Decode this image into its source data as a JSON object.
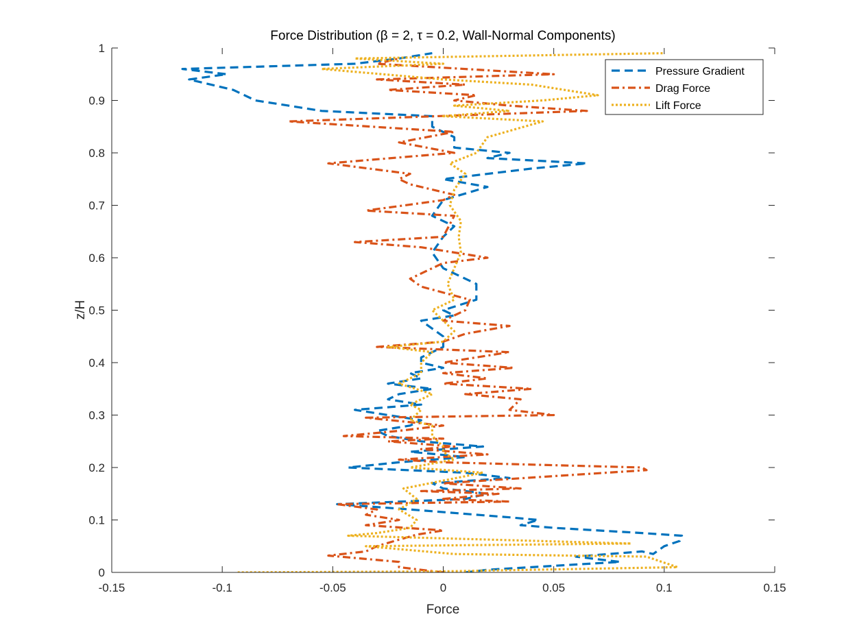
{
  "chart_data": {
    "type": "line",
    "title": "Force Distribution (β = 2, τ = 0.2, Wall-Normal Components)",
    "xlabel": "Force",
    "ylabel": "z/H",
    "xlim": [
      -0.15,
      0.15
    ],
    "ylim": [
      0,
      1
    ],
    "xticks": [
      -0.15,
      -0.1,
      -0.05,
      0,
      0.05,
      0.1,
      0.15
    ],
    "xtick_labels": [
      "-0.15",
      "-0.1",
      "-0.05",
      "0",
      "0.05",
      "0.1",
      "0.15"
    ],
    "yticks": [
      0,
      0.1,
      0.2,
      0.3,
      0.4,
      0.5,
      0.6,
      0.7,
      0.8,
      0.9,
      1
    ],
    "ytick_labels": [
      "0",
      "0.1",
      "0.2",
      "0.3",
      "0.4",
      "0.5",
      "0.6",
      "0.7",
      "0.8",
      "0.9",
      "1"
    ],
    "grid": false,
    "legend_position": "top-right",
    "series": [
      {
        "name": "Pressure Gradient",
        "color": "#0072BD",
        "style": "dashed",
        "points": [
          [
            0.01,
            0
          ],
          [
            0.02,
            0.005
          ],
          [
            0.06,
            0.015
          ],
          [
            0.08,
            0.02
          ],
          [
            0.06,
            0.03
          ],
          [
            0.09,
            0.04
          ],
          [
            0.095,
            0.035
          ],
          [
            0.1,
            0.05
          ],
          [
            0.107,
            0.06
          ],
          [
            0.108,
            0.07
          ],
          [
            0.09,
            0.075
          ],
          [
            0.05,
            0.085
          ],
          [
            0.035,
            0.09
          ],
          [
            0.043,
            0.1
          ],
          [
            0.03,
            0.105
          ],
          [
            -0.015,
            0.12
          ],
          [
            -0.048,
            0.13
          ],
          [
            0.01,
            0.14
          ],
          [
            0.02,
            0.15
          ],
          [
            0.0,
            0.16
          ],
          [
            -0.005,
            0.17
          ],
          [
            0.03,
            0.18
          ],
          [
            0.01,
            0.19
          ],
          [
            -0.043,
            0.2
          ],
          [
            -0.02,
            0.21
          ],
          [
            0.01,
            0.22
          ],
          [
            -0.015,
            0.23
          ],
          [
            0.018,
            0.24
          ],
          [
            -0.01,
            0.25
          ],
          [
            -0.025,
            0.26
          ],
          [
            -0.03,
            0.27
          ],
          [
            -0.015,
            0.28
          ],
          [
            -0.01,
            0.29
          ],
          [
            -0.04,
            0.31
          ],
          [
            -0.01,
            0.32
          ],
          [
            -0.025,
            0.33
          ],
          [
            -0.02,
            0.34
          ],
          [
            -0.005,
            0.35
          ],
          [
            -0.025,
            0.36
          ],
          [
            -0.01,
            0.37
          ],
          [
            -0.015,
            0.38
          ],
          [
            0.0,
            0.39
          ],
          [
            -0.01,
            0.4
          ],
          [
            -0.01,
            0.41
          ],
          [
            0.0,
            0.43
          ],
          [
            0.0,
            0.45
          ],
          [
            -0.01,
            0.48
          ],
          [
            0.005,
            0.49
          ],
          [
            0.0,
            0.5
          ],
          [
            0.015,
            0.52
          ],
          [
            0.015,
            0.55
          ],
          [
            0.0,
            0.58
          ],
          [
            -0.005,
            0.61
          ],
          [
            0.0,
            0.64
          ],
          [
            0.005,
            0.66
          ],
          [
            -0.005,
            0.68
          ],
          [
            0.0,
            0.71
          ],
          [
            0.02,
            0.735
          ],
          [
            0.0,
            0.75
          ],
          [
            0.04,
            0.77
          ],
          [
            0.065,
            0.78
          ],
          [
            0.02,
            0.79
          ],
          [
            0.03,
            0.8
          ],
          [
            0.005,
            0.81
          ],
          [
            0.005,
            0.83
          ],
          [
            -0.005,
            0.85
          ],
          [
            -0.005,
            0.87
          ],
          [
            -0.055,
            0.88
          ],
          [
            -0.07,
            0.89
          ],
          [
            -0.085,
            0.9
          ],
          [
            -0.095,
            0.92
          ],
          [
            -0.115,
            0.94
          ],
          [
            -0.098,
            0.95
          ],
          [
            -0.118,
            0.96
          ],
          [
            -0.04,
            0.97
          ],
          [
            -0.02,
            0.98
          ],
          [
            -0.005,
            0.99
          ]
        ]
      },
      {
        "name": "Drag Force",
        "color": "#D95319",
        "style": "dashdot",
        "points": [
          [
            0.0,
            0
          ],
          [
            -0.02,
            0.01
          ],
          [
            -0.02,
            0.02
          ],
          [
            -0.052,
            0.032
          ],
          [
            -0.035,
            0.04
          ],
          [
            -0.03,
            0.05
          ],
          [
            -0.022,
            0.06
          ],
          [
            -0.012,
            0.072
          ],
          [
            0.0,
            0.08
          ],
          [
            -0.035,
            0.09
          ],
          [
            -0.02,
            0.1
          ],
          [
            -0.035,
            0.11
          ],
          [
            -0.03,
            0.12
          ],
          [
            -0.048,
            0.13
          ],
          [
            0.03,
            0.135
          ],
          [
            0.0,
            0.14
          ],
          [
            0.025,
            0.15
          ],
          [
            -0.01,
            0.155
          ],
          [
            0.035,
            0.16
          ],
          [
            0.0,
            0.17
          ],
          [
            0.092,
            0.195
          ],
          [
            0.09,
            0.2
          ],
          [
            0.0,
            0.21
          ],
          [
            -0.02,
            0.215
          ],
          [
            0.02,
            0.225
          ],
          [
            -0.01,
            0.235
          ],
          [
            0.005,
            0.24
          ],
          [
            -0.025,
            0.25
          ],
          [
            0.0,
            0.255
          ],
          [
            -0.045,
            0.26
          ],
          [
            -0.02,
            0.27
          ],
          [
            0.0,
            0.28
          ],
          [
            -0.035,
            0.295
          ],
          [
            0.05,
            0.3
          ],
          [
            0.03,
            0.31
          ],
          [
            0.035,
            0.33
          ],
          [
            0.01,
            0.34
          ],
          [
            0.04,
            0.35
          ],
          [
            0.0,
            0.36
          ],
          [
            0.02,
            0.37
          ],
          [
            0.0,
            0.38
          ],
          [
            0.032,
            0.39
          ],
          [
            0.0,
            0.4
          ],
          [
            0.03,
            0.42
          ],
          [
            -0.03,
            0.43
          ],
          [
            0.0,
            0.44
          ],
          [
            0.01,
            0.455
          ],
          [
            0.03,
            0.47
          ],
          [
            0.0,
            0.48
          ],
          [
            0.01,
            0.5
          ],
          [
            0.012,
            0.52
          ],
          [
            -0.01,
            0.545
          ],
          [
            -0.015,
            0.56
          ],
          [
            0.0,
            0.59
          ],
          [
            0.02,
            0.6
          ],
          [
            -0.01,
            0.62
          ],
          [
            -0.04,
            0.63
          ],
          [
            0.0,
            0.64
          ],
          [
            0.005,
            0.68
          ],
          [
            -0.035,
            0.69
          ],
          [
            0.0,
            0.71
          ],
          [
            0.005,
            0.72
          ],
          [
            -0.015,
            0.74
          ],
          [
            -0.02,
            0.75
          ],
          [
            -0.015,
            0.76
          ],
          [
            -0.052,
            0.78
          ],
          [
            0.005,
            0.8
          ],
          [
            -0.02,
            0.82
          ],
          [
            0.005,
            0.84
          ],
          [
            -0.07,
            0.86
          ],
          [
            0.065,
            0.88
          ],
          [
            0.03,
            0.89
          ],
          [
            0.005,
            0.9
          ],
          [
            0.015,
            0.91
          ],
          [
            -0.025,
            0.92
          ],
          [
            0.01,
            0.93
          ],
          [
            -0.03,
            0.94
          ],
          [
            0.05,
            0.95
          ],
          [
            -0.03,
            0.97
          ],
          [
            -0.02,
            0.98
          ]
        ]
      },
      {
        "name": "Lift Force",
        "color": "#EDB120",
        "style": "dotted",
        "points": [
          [
            -0.093,
            0
          ],
          [
            0.0,
            0.002
          ],
          [
            0.106,
            0.01
          ],
          [
            0.092,
            0.03
          ],
          [
            0.005,
            0.035
          ],
          [
            -0.035,
            0.05
          ],
          [
            0.085,
            0.055
          ],
          [
            -0.043,
            0.07
          ],
          [
            -0.03,
            0.075
          ],
          [
            -0.015,
            0.085
          ],
          [
            -0.012,
            0.1
          ],
          [
            -0.02,
            0.12
          ],
          [
            -0.012,
            0.14
          ],
          [
            -0.018,
            0.16
          ],
          [
            0.018,
            0.19
          ],
          [
            -0.015,
            0.2
          ],
          [
            0.005,
            0.215
          ],
          [
            0.0,
            0.23
          ],
          [
            0.0,
            0.24
          ],
          [
            -0.005,
            0.26
          ],
          [
            -0.005,
            0.28
          ],
          [
            -0.015,
            0.29
          ],
          [
            -0.01,
            0.31
          ],
          [
            -0.015,
            0.32
          ],
          [
            -0.005,
            0.34
          ],
          [
            -0.02,
            0.36
          ],
          [
            -0.01,
            0.38
          ],
          [
            -0.01,
            0.4
          ],
          [
            -0.005,
            0.42
          ],
          [
            -0.025,
            0.43
          ],
          [
            0.0,
            0.44
          ],
          [
            0.005,
            0.46
          ],
          [
            0.0,
            0.48
          ],
          [
            -0.005,
            0.5
          ],
          [
            0.005,
            0.52
          ],
          [
            0.002,
            0.55
          ],
          [
            0.005,
            0.58
          ],
          [
            0.008,
            0.61
          ],
          [
            0.007,
            0.64
          ],
          [
            0.008,
            0.67
          ],
          [
            0.003,
            0.7
          ],
          [
            0.005,
            0.73
          ],
          [
            0.01,
            0.76
          ],
          [
            0.003,
            0.78
          ],
          [
            0.015,
            0.8
          ],
          [
            0.02,
            0.83
          ],
          [
            0.045,
            0.86
          ],
          [
            0.0,
            0.87
          ],
          [
            0.03,
            0.88
          ],
          [
            0.005,
            0.89
          ],
          [
            0.045,
            0.9
          ],
          [
            0.07,
            0.91
          ],
          [
            0.04,
            0.93
          ],
          [
            0.0,
            0.94
          ],
          [
            -0.055,
            0.96
          ],
          [
            0.0,
            0.97
          ],
          [
            -0.04,
            0.98
          ],
          [
            0.1,
            0.99
          ]
        ]
      }
    ]
  }
}
